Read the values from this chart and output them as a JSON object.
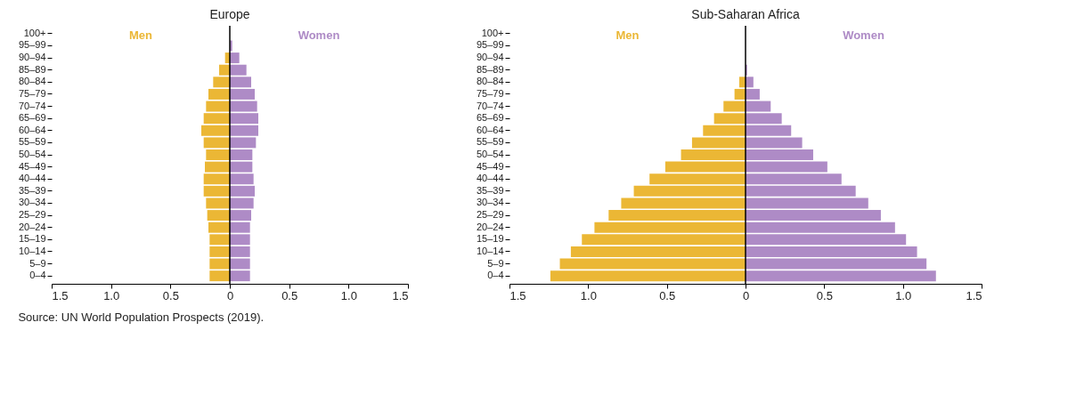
{
  "chart_data": [
    {
      "type": "bar",
      "orientation": "horizontal",
      "stacked": true,
      "title": "Europe",
      "legend": false,
      "grid": false,
      "categories": [
        "100+",
        "95–99",
        "90–94",
        "85–89",
        "80–84",
        "75–79",
        "70–74",
        "65–69",
        "60–64",
        "55–59",
        "50–54",
        "45–49",
        "40–44",
        "35–39",
        "30–34",
        "25–29",
        "20–24",
        "15–19",
        "10–14",
        "5–9",
        "0–4"
      ],
      "series": [
        {
          "name": "Men",
          "color": "#ebb735",
          "values": [
            0,
            null,
            -0.04,
            -0.09,
            -0.14,
            -0.18,
            -0.2,
            -0.22,
            -0.24,
            -0.22,
            -0.2,
            -0.21,
            -0.22,
            -0.22,
            -0.2,
            -0.19,
            -0.18,
            -0.17,
            -0.17,
            -0.17,
            -0.17
          ]
        },
        {
          "name": "Women",
          "color": "#ae8bc6",
          "values": [
            0,
            0.02,
            0.08,
            0.14,
            0.18,
            0.21,
            0.23,
            0.24,
            0.24,
            0.22,
            0.19,
            0.19,
            0.2,
            0.21,
            0.2,
            0.18,
            0.17,
            0.17,
            0.17,
            0.17,
            0.17
          ]
        }
      ],
      "xlim": [
        -1.5,
        1.5
      ],
      "xticks": [
        {
          "value": -1.5,
          "label": "1.5"
        },
        {
          "value": -1,
          "label": "1.0"
        },
        {
          "value": -0.5,
          "label": "0.5"
        },
        0,
        {
          "value": 0.5,
          "label": "0.5"
        },
        {
          "value": 1,
          "label": "1.0"
        },
        {
          "value": 1.5,
          "label": "1.5"
        }
      ],
      "ref_lines": [
        {
          "axis": "x",
          "value": 0,
          "color": "#000000"
        }
      ],
      "annotations": [
        "Source: UN World Population Prospects (2019)."
      ]
    },
    {
      "type": "bar",
      "orientation": "horizontal",
      "stacked": true,
      "title": "Sub-Saharan Africa",
      "legend": false,
      "grid": false,
      "categories": [
        "100+",
        "95–99",
        "90–94",
        "85–89",
        "80–84",
        "75–79",
        "70–74",
        "65–69",
        "60–64",
        "55–59",
        "50–54",
        "45–49",
        "40–44",
        "35–39",
        "30–34",
        "25–29",
        "20–24",
        "15–19",
        "10–14",
        "5–9",
        "0–4"
      ],
      "series": [
        {
          "name": "Men",
          "color": "#ebb735",
          "values": [
            0,
            0,
            0,
            0,
            -0.04,
            -0.07,
            -0.14,
            -0.2,
            -0.27,
            -0.34,
            -0.41,
            -0.51,
            -0.61,
            -0.71,
            -0.79,
            -0.87,
            -0.96,
            -1.04,
            -1.11,
            -1.18,
            -1.24
          ]
        },
        {
          "name": "Women",
          "color": "#ae8bc6",
          "values": [
            0,
            0,
            0,
            0.01,
            0.05,
            0.09,
            0.16,
            0.23,
            0.29,
            0.36,
            0.43,
            0.52,
            0.61,
            0.7,
            0.78,
            0.86,
            0.95,
            1.02,
            1.09,
            1.15,
            1.21
          ]
        }
      ],
      "xlim": [
        -1.5,
        1.5
      ],
      "xticks": [
        {
          "value": -1.5,
          "label": "1.5"
        },
        {
          "value": -1,
          "label": "1.0"
        },
        {
          "value": -0.5,
          "label": "0.5"
        },
        0,
        {
          "value": 0.5,
          "label": "0.5"
        },
        {
          "value": 1,
          "label": "1.0"
        },
        {
          "value": 1.5,
          "label": "1.5"
        }
      ],
      "ref_lines": [
        {
          "axis": "x",
          "value": 0,
          "color": "#000000"
        }
      ]
    }
  ]
}
